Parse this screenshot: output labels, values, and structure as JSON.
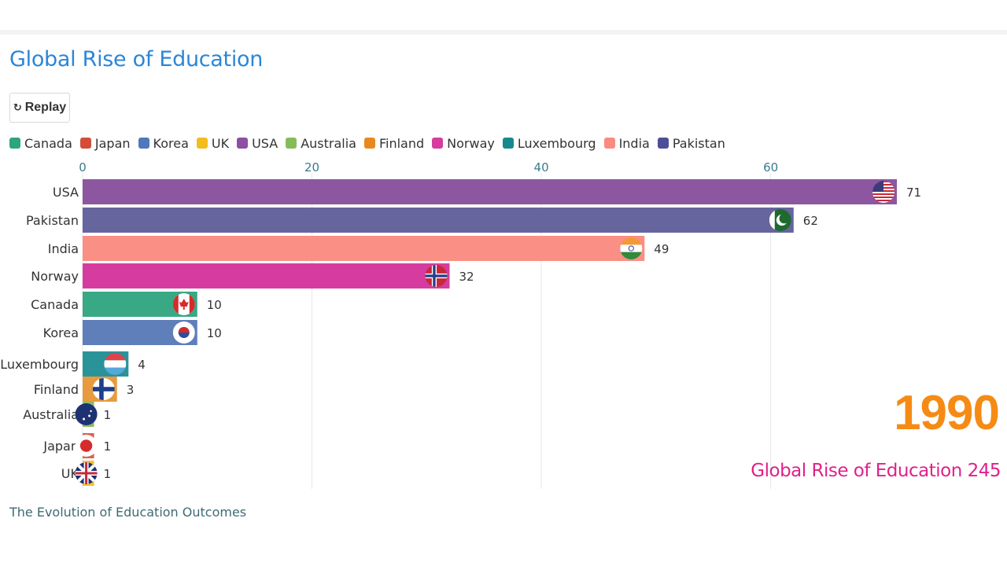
{
  "header": {
    "title": "Global Rise of Education",
    "replay_icon": "↻",
    "replay_label": "Replay"
  },
  "legend": [
    {
      "name": "Canada",
      "color": "#2ea57c"
    },
    {
      "name": "Japan",
      "color": "#d24e3a"
    },
    {
      "name": "Korea",
      "color": "#4f78bd"
    },
    {
      "name": "UK",
      "color": "#f2bd1d"
    },
    {
      "name": "USA",
      "color": "#8d4fa2"
    },
    {
      "name": "Australia",
      "color": "#84bc5a"
    },
    {
      "name": "Finland",
      "color": "#e8891f"
    },
    {
      "name": "Norway",
      "color": "#d63ca0"
    },
    {
      "name": "Luxembourg",
      "color": "#16898f"
    },
    {
      "name": "India",
      "color": "#f98b80"
    },
    {
      "name": "Pakistan",
      "color": "#4e4e96"
    }
  ],
  "chart_data": {
    "type": "bar",
    "orientation": "horizontal",
    "xlim": [
      0,
      71
    ],
    "ticks": [
      0,
      20,
      40,
      60
    ],
    "grid": true,
    "categories": [
      "USA",
      "Pakistan",
      "India",
      "Norway",
      "Canada",
      "Korea",
      "Luxembourg",
      "Finland",
      "Australia",
      "Japan",
      "UK"
    ],
    "values": [
      71,
      62,
      49,
      32,
      10,
      10,
      4,
      3,
      1,
      1,
      1
    ],
    "colors": [
      "#8d56a1",
      "#66659e",
      "#fa8f85",
      "#d63c9f",
      "#38a885",
      "#5e7fba",
      "#2a939a",
      "#e89b3e",
      "#89bd63",
      "#d96353",
      "#f3c12d"
    ],
    "flag_icons": [
      "usa-flag-icon",
      "pakistan-flag-icon",
      "india-flag-icon",
      "norway-flag-icon",
      "canada-flag-icon",
      "korea-flag-icon",
      "luxembourg-flag-icon",
      "finland-flag-icon",
      "australia-flag-icon",
      "japan-flag-icon",
      "uk-flag-icon"
    ]
  },
  "year": "1990",
  "counter": "Global Rise of Education 245",
  "caption": "The Evolution of Education Outcomes"
}
